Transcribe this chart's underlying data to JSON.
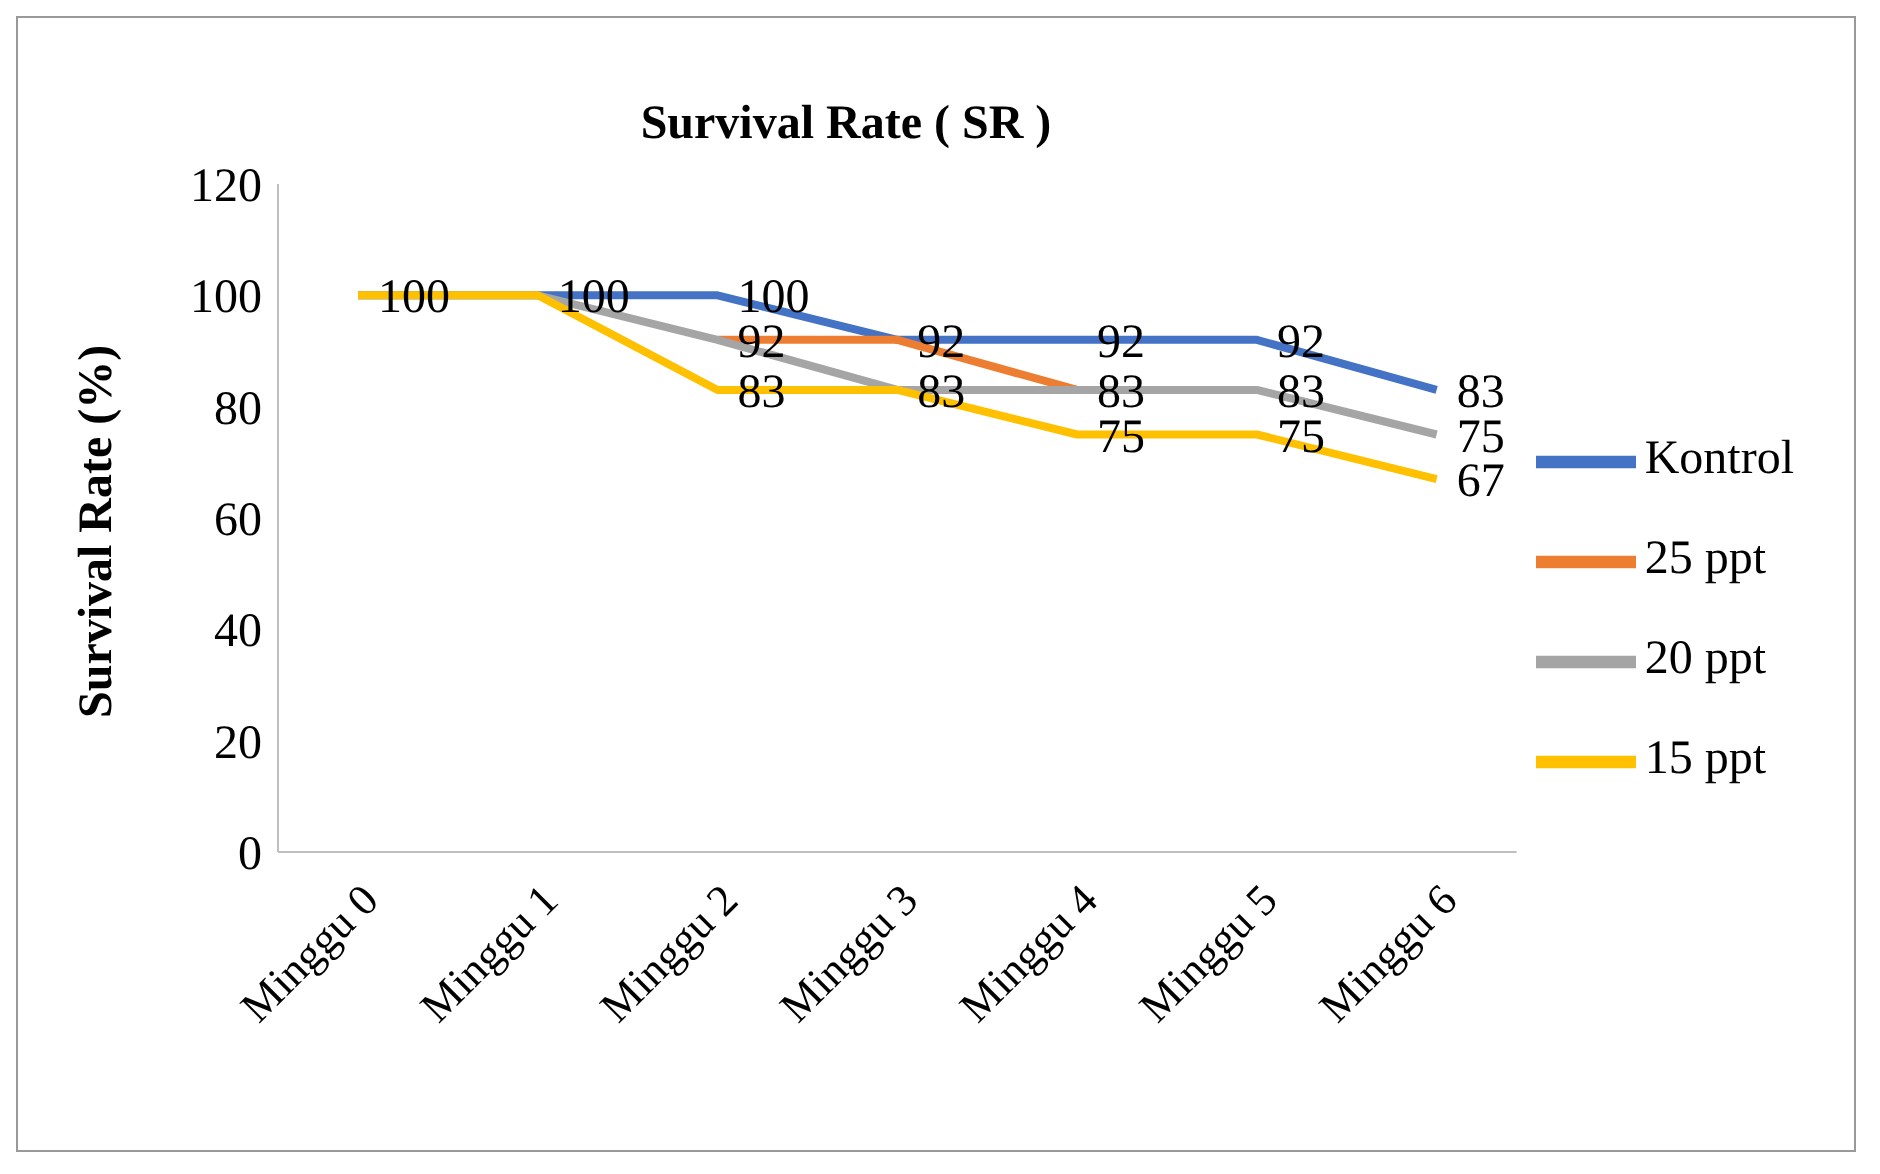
{
  "chart_data": {
    "type": "line",
    "title": "Survival Rate ( SR )",
    "ylabel": "Survival Rate (%)",
    "categories": [
      "Minggu 0",
      "Minggu 1",
      "Minggu 2",
      "Minggu 3",
      "Minggu 4",
      "Minggu 5",
      "Minggu 6"
    ],
    "series": [
      {
        "name": "Kontrol",
        "color": "#4472c4",
        "values": [
          100,
          100,
          100,
          92,
          92,
          92,
          83
        ],
        "value_labels": [
          "100",
          "100",
          "100",
          "92",
          "92",
          "92",
          "83"
        ]
      },
      {
        "name": "25 ppt",
        "color": "#ed7d31",
        "values": [
          null,
          null,
          92,
          92,
          83,
          null,
          null
        ],
        "value_labels": [
          null,
          null,
          "92",
          null,
          "83",
          null,
          null
        ]
      },
      {
        "name": "20 ppt",
        "color": "#a5a5a5",
        "values": [
          100,
          100,
          92,
          83,
          83,
          83,
          75
        ],
        "value_labels": [
          null,
          null,
          null,
          "83",
          null,
          "83",
          "75"
        ]
      },
      {
        "name": "15 ppt",
        "color": "#ffc000",
        "values": [
          100,
          100,
          83,
          83,
          75,
          75,
          67
        ],
        "value_labels": [
          null,
          null,
          "83",
          null,
          "75",
          "75",
          "67"
        ]
      }
    ],
    "ylim": [
      0,
      120
    ],
    "yticks": [
      0,
      20,
      40,
      60,
      80,
      100,
      120
    ],
    "grid": false,
    "legend": "right",
    "marker": "none",
    "line_style": "solid"
  }
}
